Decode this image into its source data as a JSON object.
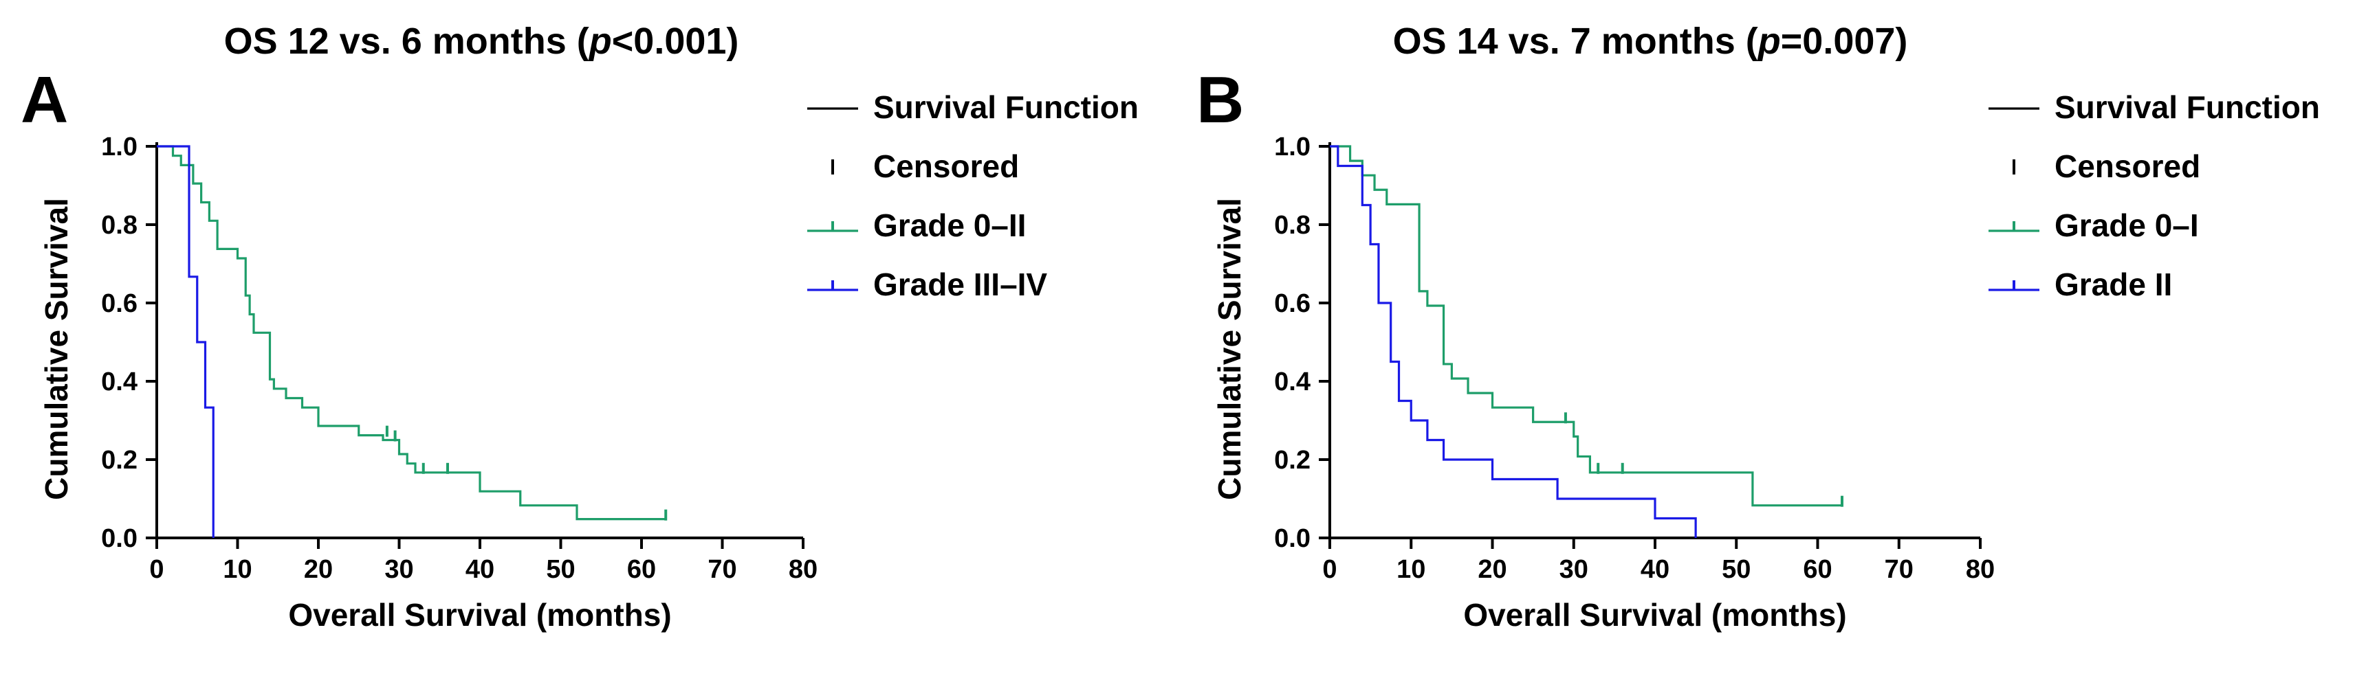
{
  "chart_data": [
    {
      "type": "line",
      "panel_label": "A",
      "title_parts": [
        "OS 12 vs. 6 months (",
        "p",
        "<0.001)"
      ],
      "xlabel": "Overall Survival (months)",
      "ylabel": "Cumulative Survival",
      "xlim": [
        0,
        80
      ],
      "ylim": [
        0,
        1.0
      ],
      "x_ticks": [
        0,
        10,
        20,
        30,
        40,
        50,
        60,
        70,
        80
      ],
      "y_ticks": [
        0.0,
        0.2,
        0.4,
        0.6,
        0.8,
        1.0
      ],
      "y_tick_labels": [
        "0.0",
        "0.2",
        "0.4",
        "0.6",
        "0.8",
        "1.0"
      ],
      "legend": {
        "placement": "right",
        "entries": [
          {
            "label": "Survival Function",
            "symbol": "line",
            "color": "#000000"
          },
          {
            "label": "Censored",
            "symbol": "censor",
            "color": "#000000"
          },
          {
            "label": "Grade 0–II",
            "symbol": "line-censor",
            "color": "#1e9e6a"
          },
          {
            "label": "Grade III–IV",
            "symbol": "line-censor",
            "color": "#1a1ae6"
          }
        ]
      },
      "series": [
        {
          "name": "Grade 0–II",
          "color": "#1e9e6a",
          "steps": [
            [
              0,
              1.0
            ],
            [
              2,
              0.976
            ],
            [
              3,
              0.952
            ],
            [
              4.5,
              0.905
            ],
            [
              5.5,
              0.857
            ],
            [
              6.5,
              0.81
            ],
            [
              7.5,
              0.738
            ],
            [
              10,
              0.714
            ],
            [
              11,
              0.619
            ],
            [
              11.5,
              0.571
            ],
            [
              12,
              0.524
            ],
            [
              14,
              0.405
            ],
            [
              14.5,
              0.381
            ],
            [
              16,
              0.357
            ],
            [
              18,
              0.333
            ],
            [
              20,
              0.286
            ],
            [
              25,
              0.262
            ],
            [
              28,
              0.25
            ],
            [
              30,
              0.214
            ],
            [
              31,
              0.19
            ],
            [
              32,
              0.167
            ],
            [
              40,
              0.119
            ],
            [
              45,
              0.083
            ],
            [
              52,
              0.048
            ],
            [
              63,
              0.048
            ]
          ],
          "censored": [
            [
              28.5,
              0.262
            ],
            [
              29.5,
              0.25
            ],
            [
              33,
              0.167
            ],
            [
              36,
              0.167
            ],
            [
              63,
              0.048
            ]
          ]
        },
        {
          "name": "Grade III–IV",
          "color": "#1a1ae6",
          "steps": [
            [
              0,
              1.0
            ],
            [
              4,
              0.667
            ],
            [
              5,
              0.5
            ],
            [
              6,
              0.333
            ],
            [
              7,
              0.0
            ]
          ],
          "censored": []
        }
      ]
    },
    {
      "type": "line",
      "panel_label": "B",
      "title_parts": [
        "OS 14 vs. 7 months (",
        "p",
        "=0.007)"
      ],
      "xlabel": "Overall Survival (months)",
      "ylabel": "Cumulative Survival",
      "xlim": [
        0,
        80
      ],
      "ylim": [
        0,
        1.0
      ],
      "x_ticks": [
        0,
        10,
        20,
        30,
        40,
        50,
        60,
        70,
        80
      ],
      "y_ticks": [
        0.0,
        0.2,
        0.4,
        0.6,
        0.8,
        1.0
      ],
      "y_tick_labels": [
        "0.0",
        "0.2",
        "0.4",
        "0.6",
        "0.8",
        "1.0"
      ],
      "legend": {
        "placement": "right",
        "entries": [
          {
            "label": "Survival Function",
            "symbol": "line",
            "color": "#000000"
          },
          {
            "label": "Censored",
            "symbol": "censor",
            "color": "#000000"
          },
          {
            "label": "Grade 0–I",
            "symbol": "line-censor",
            "color": "#1e9e6a"
          },
          {
            "label": "Grade II",
            "symbol": "line-censor",
            "color": "#1a1ae6"
          }
        ]
      },
      "series": [
        {
          "name": "Grade 0–I",
          "color": "#1e9e6a",
          "steps": [
            [
              0,
              1.0
            ],
            [
              2.5,
              0.963
            ],
            [
              4,
              0.926
            ],
            [
              5.5,
              0.889
            ],
            [
              7,
              0.852
            ],
            [
              11,
              0.63
            ],
            [
              12,
              0.593
            ],
            [
              14,
              0.444
            ],
            [
              15,
              0.407
            ],
            [
              17,
              0.37
            ],
            [
              20,
              0.333
            ],
            [
              25,
              0.296
            ],
            [
              30,
              0.259
            ],
            [
              30.5,
              0.208
            ],
            [
              32,
              0.167
            ],
            [
              52,
              0.083
            ],
            [
              63,
              0.083
            ]
          ],
          "censored": [
            [
              29,
              0.296
            ],
            [
              33,
              0.167
            ],
            [
              36,
              0.167
            ],
            [
              63,
              0.083
            ]
          ]
        },
        {
          "name": "Grade II",
          "color": "#1a1ae6",
          "steps": [
            [
              0,
              1.0
            ],
            [
              1,
              0.95
            ],
            [
              4,
              0.85
            ],
            [
              5,
              0.75
            ],
            [
              6,
              0.6
            ],
            [
              7.5,
              0.45
            ],
            [
              8.5,
              0.35
            ],
            [
              10,
              0.3
            ],
            [
              12,
              0.25
            ],
            [
              14,
              0.2
            ],
            [
              20,
              0.15
            ],
            [
              28,
              0.1
            ],
            [
              40,
              0.05
            ],
            [
              45,
              0.0
            ]
          ],
          "censored": []
        }
      ]
    }
  ]
}
